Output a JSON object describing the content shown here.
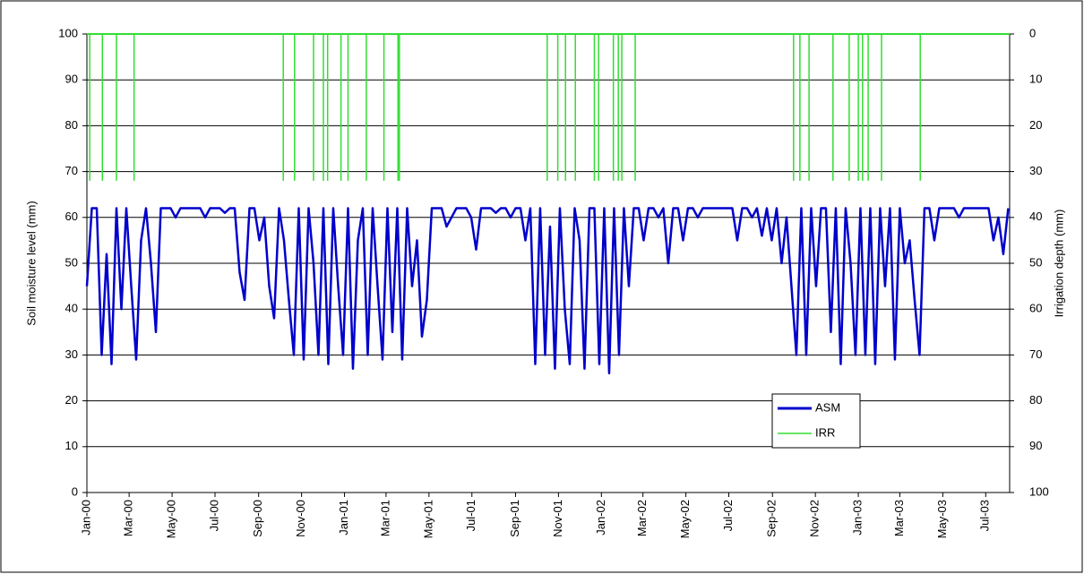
{
  "chart_data": {
    "type": "line",
    "y_label": "Soil moisture level (mm)",
    "y2_label": "Irrigation depth (mm)",
    "xlim": [
      0,
      1311
    ],
    "xticks": [
      {
        "value": 0,
        "label": "Jan-00"
      },
      {
        "value": 60,
        "label": "Mar-00"
      },
      {
        "value": 121,
        "label": "May-00"
      },
      {
        "value": 182,
        "label": "Jul-00"
      },
      {
        "value": 244,
        "label": "Sep-00"
      },
      {
        "value": 305,
        "label": "Nov-00"
      },
      {
        "value": 366,
        "label": "Jan-01"
      },
      {
        "value": 425,
        "label": "Mar-01"
      },
      {
        "value": 486,
        "label": "May-01"
      },
      {
        "value": 547,
        "label": "Jul-01"
      },
      {
        "value": 609,
        "label": "Sep-01"
      },
      {
        "value": 670,
        "label": "Nov-01"
      },
      {
        "value": 731,
        "label": "Jan-02"
      },
      {
        "value": 790,
        "label": "Mar-02"
      },
      {
        "value": 851,
        "label": "May-02"
      },
      {
        "value": 912,
        "label": "Jul-02"
      },
      {
        "value": 974,
        "label": "Sep-02"
      },
      {
        "value": 1035,
        "label": "Nov-02"
      },
      {
        "value": 1096,
        "label": "Jan-03"
      },
      {
        "value": 1155,
        "label": "Mar-03"
      },
      {
        "value": 1216,
        "label": "May-03"
      },
      {
        "value": 1277,
        "label": "Jul-03"
      }
    ],
    "ylim": [
      0,
      100
    ],
    "yticks": [
      0,
      10,
      20,
      30,
      40,
      50,
      60,
      70,
      80,
      90,
      100
    ],
    "y2lim": [
      100,
      0
    ],
    "y2ticks": [
      0,
      10,
      20,
      30,
      40,
      50,
      60,
      70,
      80,
      90,
      100
    ],
    "grid": true,
    "legend": "lower-right",
    "series": [
      {
        "name": "ASM",
        "color": "#0000cc",
        "x": [
          0,
          7,
          14,
          21,
          28,
          35,
          42,
          49,
          56,
          63,
          70,
          77,
          84,
          91,
          98,
          105,
          112,
          119,
          126,
          133,
          140,
          147,
          154,
          161,
          168,
          175,
          182,
          189,
          196,
          203,
          210,
          217,
          224,
          231,
          238,
          245,
          252,
          259,
          266,
          273,
          280,
          287,
          294,
          301,
          308,
          315,
          322,
          329,
          336,
          343,
          350,
          357,
          364,
          371,
          378,
          385,
          392,
          399,
          406,
          413,
          420,
          427,
          434,
          441,
          448,
          455,
          462,
          469,
          476,
          483,
          490,
          497,
          504,
          511,
          518,
          525,
          532,
          539,
          546,
          553,
          560,
          567,
          574,
          581,
          588,
          595,
          602,
          609,
          616,
          623,
          630,
          637,
          644,
          651,
          658,
          665,
          672,
          679,
          686,
          693,
          700,
          707,
          714,
          721,
          728,
          735,
          742,
          749,
          756,
          763,
          770,
          777,
          784,
          791,
          798,
          805,
          812,
          819,
          826,
          833,
          840,
          847,
          854,
          861,
          868,
          875,
          882,
          889,
          896,
          903,
          910,
          917,
          924,
          931,
          938,
          945,
          952,
          959,
          966,
          973,
          980,
          987,
          994,
          1001,
          1008,
          1015,
          1022,
          1029,
          1036,
          1043,
          1050,
          1057,
          1064,
          1071,
          1078,
          1085,
          1092,
          1099,
          1106,
          1113,
          1120,
          1127,
          1134,
          1141,
          1148,
          1155,
          1162,
          1169,
          1176,
          1183,
          1190,
          1197,
          1204,
          1211,
          1218,
          1225,
          1232,
          1239,
          1246,
          1253,
          1260,
          1267,
          1274,
          1281,
          1288,
          1295,
          1302,
          1309
        ],
        "values": [
          45,
          62,
          62,
          30,
          52,
          28,
          62,
          40,
          62,
          45,
          29,
          55,
          62,
          50,
          35,
          62,
          62,
          62,
          60,
          62,
          62,
          62,
          62,
          62,
          60,
          62,
          62,
          62,
          61,
          62,
          62,
          48,
          42,
          62,
          62,
          55,
          60,
          45,
          38,
          62,
          55,
          42,
          30,
          62,
          29,
          62,
          50,
          30,
          62,
          28,
          62,
          45,
          30,
          62,
          27,
          55,
          62,
          30,
          62,
          45,
          29,
          62,
          35,
          62,
          29,
          62,
          45,
          55,
          34,
          42,
          62,
          62,
          62,
          58,
          60,
          62,
          62,
          62,
          60,
          53,
          62,
          62,
          62,
          61,
          62,
          62,
          60,
          62,
          62,
          55,
          62,
          28,
          62,
          30,
          58,
          27,
          62,
          40,
          28,
          62,
          55,
          27,
          62,
          62,
          28,
          62,
          26,
          62,
          30,
          62,
          45,
          62,
          62,
          55,
          62,
          62,
          60,
          62,
          50,
          62,
          62,
          55,
          62,
          62,
          60,
          62,
          62,
          62,
          62,
          62,
          62,
          62,
          55,
          62,
          62,
          60,
          62,
          56,
          62,
          55,
          62,
          50,
          60,
          45,
          30,
          62,
          30,
          62,
          45,
          62,
          62,
          35,
          62,
          28,
          62,
          50,
          30,
          62,
          30,
          62,
          28,
          62,
          45,
          62,
          29,
          62,
          50,
          55,
          42,
          30,
          62,
          62,
          55,
          62,
          62,
          62,
          62,
          60,
          62,
          62,
          62,
          62,
          62,
          62,
          55,
          60,
          52,
          62
        ]
      },
      {
        "name": "IRR",
        "color": "#33dd33",
        "axis": "y2",
        "x": [
          4,
          22,
          42,
          67,
          279,
          295,
          322,
          336,
          342,
          361,
          371,
          397,
          422,
          442,
          444,
          654,
          669,
          680,
          694,
          721,
          727,
          748,
          755,
          760,
          779,
          1004,
          1013,
          1026,
          1060,
          1083,
          1096,
          1102,
          1110,
          1129,
          1184
        ],
        "values": [
          32,
          32,
          32,
          32,
          32,
          32,
          32,
          32,
          32,
          32,
          32,
          32,
          32,
          32,
          32,
          32,
          32,
          32,
          32,
          32,
          32,
          32,
          32,
          32,
          32,
          32,
          32,
          32,
          32,
          32,
          32,
          32,
          32,
          32,
          32
        ]
      }
    ]
  }
}
